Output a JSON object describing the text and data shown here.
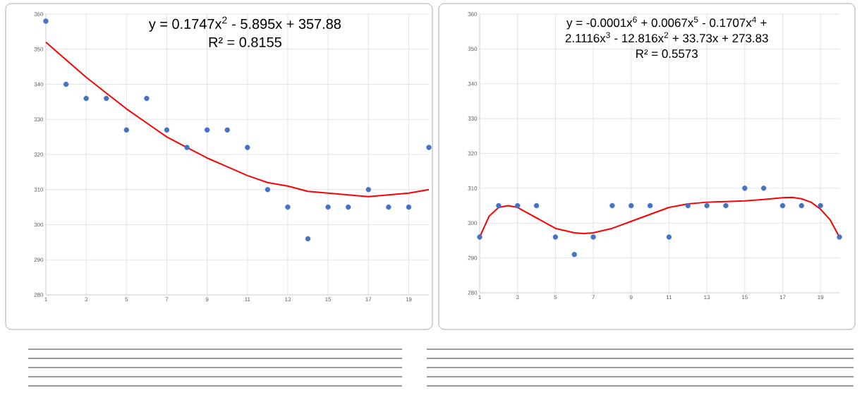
{
  "chart_data": [
    {
      "type": "scatter",
      "xlim": [
        1,
        20
      ],
      "ylim": [
        280,
        360
      ],
      "xticks": [
        1,
        3,
        5,
        7,
        9,
        11,
        13,
        15,
        17,
        19
      ],
      "yticks": [
        280,
        290,
        300,
        310,
        320,
        330,
        340,
        350,
        360
      ],
      "grid": true,
      "annotations": [
        "y = 0.1747x$^{2}$ - 5.895x + 357.88",
        "R² = 0.8155"
      ],
      "series": [
        {
          "color": "#4472c4",
          "marker": "circle",
          "x": [
            1,
            2,
            3,
            4,
            5,
            6,
            7,
            8,
            9,
            10,
            11,
            12,
            13,
            14,
            15,
            16,
            17,
            18,
            19,
            20
          ],
          "values": [
            358,
            340,
            336,
            336,
            327,
            336,
            327,
            322,
            327,
            327,
            322,
            310,
            305,
            296,
            305,
            305,
            310,
            305,
            305,
            322
          ]
        },
        {
          "type": "line",
          "color": "#ff0000",
          "marker": "none",
          "x": [
            1,
            2,
            3,
            4,
            5,
            6,
            7,
            8,
            9,
            10,
            11,
            12,
            13,
            14,
            15,
            16,
            17,
            18,
            19,
            20
          ],
          "values": [
            352,
            347,
            342,
            337.5,
            333,
            329,
            325,
            322,
            319,
            316.5,
            314,
            312,
            311,
            309.5,
            309,
            308.5,
            308,
            308.5,
            309,
            310
          ]
        }
      ]
    },
    {
      "type": "scatter",
      "xlim": [
        1,
        20
      ],
      "ylim": [
        280,
        360
      ],
      "xticks": [
        1,
        3,
        5,
        7,
        9,
        11,
        13,
        15,
        17,
        19
      ],
      "yticks": [
        280,
        290,
        300,
        310,
        320,
        330,
        340,
        350,
        360
      ],
      "grid": true,
      "annotations": [
        "y = -0.0001x$^{6}$ + 0.0067x$^{5}$ - 0.1707x$^{4}$ +",
        "2.1116x$^{3}$ - 12.816x$^{2}$ + 33.73x + 273.83",
        "R² = 0.5573"
      ],
      "series": [
        {
          "color": "#4472c4",
          "marker": "circle",
          "x": [
            1,
            2,
            3,
            4,
            5,
            6,
            7,
            8,
            9,
            10,
            11,
            12,
            13,
            14,
            15,
            16,
            17,
            18,
            19,
            20
          ],
          "values": [
            296,
            305,
            305,
            305,
            296,
            291,
            296,
            305,
            305,
            305,
            296,
            305,
            305,
            305,
            310,
            310,
            305,
            305,
            305,
            296
          ]
        },
        {
          "type": "line",
          "color": "#ff0000",
          "marker": "none",
          "x": [
            1,
            1.5,
            2,
            2.5,
            3,
            4,
            5,
            6,
            6.5,
            7,
            8,
            9,
            10,
            11,
            12,
            13,
            14,
            15,
            16,
            17,
            17.5,
            18,
            18.5,
            19,
            19.5,
            20
          ],
          "values": [
            296,
            302,
            304.5,
            305,
            304.5,
            301.5,
            298.5,
            297.2,
            297,
            297.2,
            298.5,
            300.5,
            302.5,
            304.5,
            305.5,
            306,
            306.2,
            306.4,
            306.8,
            307.3,
            307.4,
            307,
            306,
            304,
            301,
            296
          ]
        }
      ]
    }
  ]
}
